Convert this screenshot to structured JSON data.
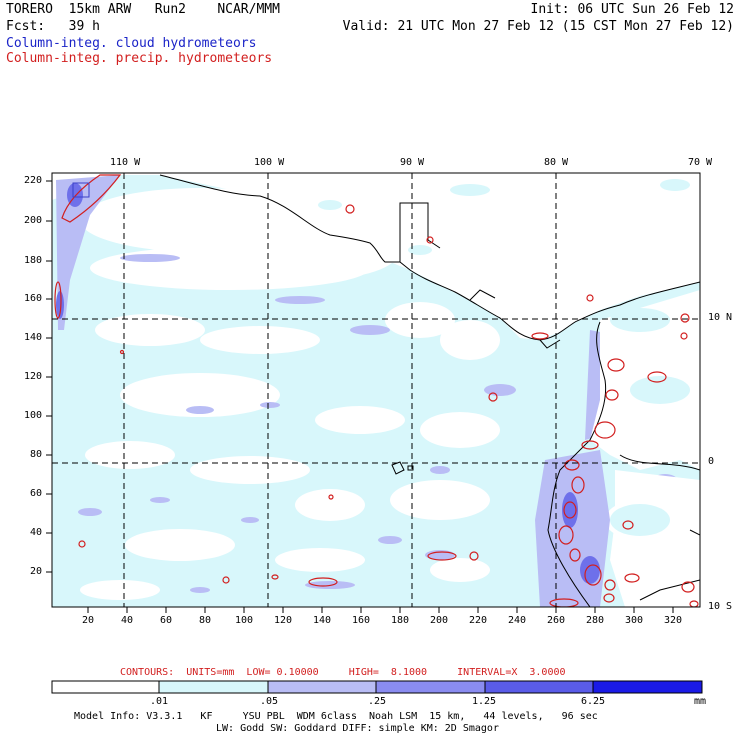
{
  "header": {
    "line1_left": "TORERO  15km ARW   Run2    NCAR/MMM",
    "line1_right": "Init: 06 UTC Sun 26 Feb 12",
    "line2_left": "Fcst:   39 h",
    "line2_right": "Valid: 21 UTC Mon 27 Feb 12 (15 CST Mon 27 Feb 12)",
    "legend_cloud": "Column-integ. cloud hydrometeors",
    "legend_precip": "Column-integ. precip. hydrometeors"
  },
  "colors": {
    "cloud_legend": "#1b24c8",
    "precip_legend": "#d21f1f",
    "contour": "#d21f1f"
  },
  "map": {
    "lon_labels": [
      "110 W",
      "100 W",
      "90 W",
      "80 W",
      "70 W"
    ],
    "lat_labels": [
      "10 N",
      "0",
      "10 S"
    ],
    "y_ticks": [
      "220",
      "200",
      "180",
      "160",
      "140",
      "120",
      "100",
      "80",
      "60",
      "40",
      "20"
    ],
    "x_ticks": [
      "20",
      "40",
      "60",
      "80",
      "100",
      "120",
      "140",
      "160",
      "180",
      "200",
      "220",
      "240",
      "260",
      "280",
      "300",
      "320"
    ]
  },
  "contours_info": {
    "label": "CONTOURS:  UNITS=mm  LOW= 0.10000     HIGH=  8.1000     INTERVAL=X  3.0000"
  },
  "colorbar": {
    "levels": [
      ".01",
      ".05",
      ".25",
      "1.25",
      "6.25"
    ],
    "unit": "mm",
    "fill_colors": [
      "#ffffff",
      "#d8f7fb",
      "#b9bdf5",
      "#8a8cf0",
      "#5a5ce8",
      "#2e30e0",
      "#0a0ae6"
    ]
  },
  "model_info": {
    "line1": "Model Info: V3.3.1   KF     YSU PBL  WDM 6class  Noah LSM  15 km,   44 levels,   96 sec",
    "line2": "LW: Godd SW: Goddard DIFF: simple KM: 2D Smagor"
  }
}
